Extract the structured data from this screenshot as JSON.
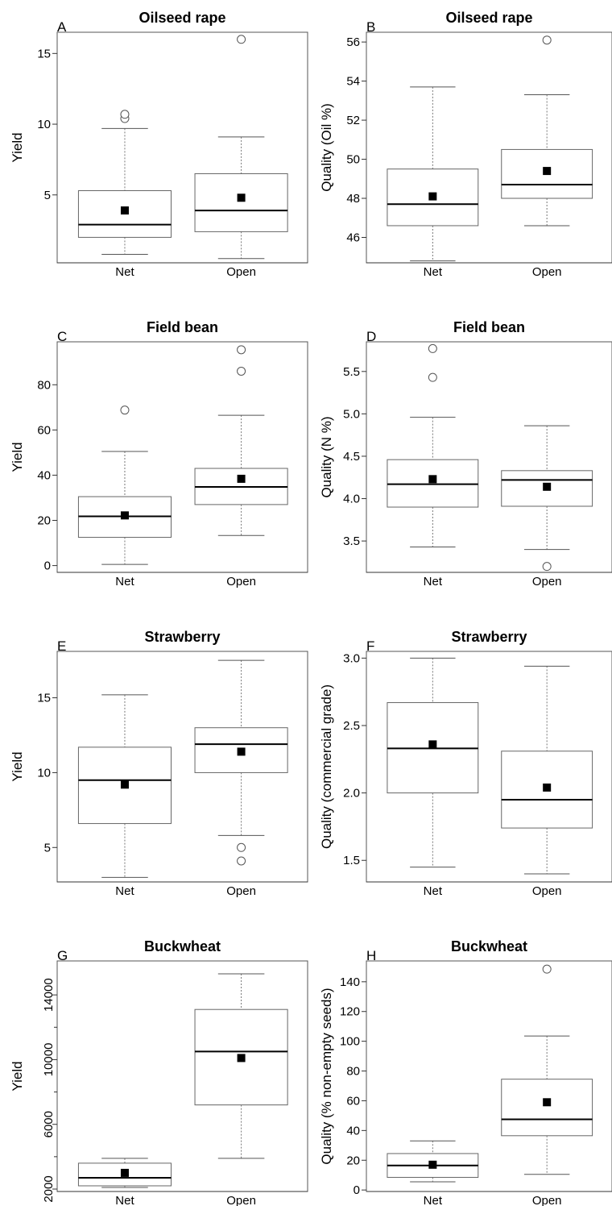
{
  "chart_data": [
    {
      "type": "box",
      "letter": "A",
      "title": "Oilseed rape",
      "ylabel": "Yield",
      "categories": [
        "Net",
        "Open"
      ],
      "ylim": [
        0.2,
        16.5
      ],
      "yticks": [
        5,
        10,
        15
      ],
      "boxes": [
        {
          "lower_whisker": 0.8,
          "q1": 2.0,
          "median": 2.9,
          "q3": 5.3,
          "upper_whisker": 9.7,
          "mean": 3.9,
          "outliers": [
            10.4,
            10.7
          ]
        },
        {
          "lower_whisker": 0.5,
          "q1": 2.4,
          "median": 3.9,
          "q3": 6.5,
          "upper_whisker": 9.1,
          "mean": 4.8,
          "outliers": [
            16.0
          ]
        }
      ]
    },
    {
      "type": "box",
      "letter": "B",
      "title": "Oilseed rape",
      "ylabel": "Quality (Oil %)",
      "categories": [
        "Net",
        "Open"
      ],
      "ylim": [
        44.7,
        56.5
      ],
      "yticks": [
        46,
        48,
        50,
        52,
        54,
        56
      ],
      "boxes": [
        {
          "lower_whisker": 44.8,
          "q1": 46.6,
          "median": 47.7,
          "q3": 49.5,
          "upper_whisker": 53.7,
          "mean": 48.1,
          "outliers": []
        },
        {
          "lower_whisker": 46.6,
          "q1": 48.0,
          "median": 48.7,
          "q3": 50.5,
          "upper_whisker": 53.3,
          "mean": 49.4,
          "outliers": [
            56.1
          ]
        }
      ]
    },
    {
      "type": "box",
      "letter": "C",
      "title": "Field bean",
      "ylabel": "Yield",
      "categories": [
        "Net",
        "Open"
      ],
      "ylim": [
        -3,
        99
      ],
      "yticks": [
        0,
        20,
        40,
        60,
        80
      ],
      "boxes": [
        {
          "lower_whisker": 0.5,
          "q1": 12.5,
          "median": 21.8,
          "q3": 30.5,
          "upper_whisker": 50.5,
          "mean": 22.2,
          "outliers": [
            68.8
          ]
        },
        {
          "lower_whisker": 13.3,
          "q1": 27.0,
          "median": 34.8,
          "q3": 43.0,
          "upper_whisker": 66.5,
          "mean": 38.4,
          "outliers": [
            86.0,
            95.5
          ]
        }
      ]
    },
    {
      "type": "box",
      "letter": "D",
      "title": "Field bean",
      "ylabel": "Quality (N %)",
      "categories": [
        "Net",
        "Open"
      ],
      "ylim": [
        3.13,
        5.85
      ],
      "yticks": [
        3.5,
        4.0,
        4.5,
        5.0,
        5.5
      ],
      "boxes": [
        {
          "lower_whisker": 3.43,
          "q1": 3.9,
          "median": 4.17,
          "q3": 4.46,
          "upper_whisker": 4.96,
          "mean": 4.23,
          "outliers": [
            5.43,
            5.77
          ]
        },
        {
          "lower_whisker": 3.4,
          "q1": 3.91,
          "median": 4.22,
          "q3": 4.33,
          "upper_whisker": 4.86,
          "mean": 4.14,
          "outliers": [
            3.2
          ]
        }
      ]
    },
    {
      "type": "box",
      "letter": "E",
      "title": "Strawberry",
      "ylabel": "Yield",
      "categories": [
        "Net",
        "Open"
      ],
      "ylim": [
        2.7,
        18.1
      ],
      "yticks": [
        5,
        10,
        15
      ],
      "boxes": [
        {
          "lower_whisker": 3.0,
          "q1": 6.6,
          "median": 9.5,
          "q3": 11.7,
          "upper_whisker": 15.2,
          "mean": 9.2,
          "outliers": []
        },
        {
          "lower_whisker": 5.8,
          "q1": 10.0,
          "median": 11.9,
          "q3": 13.0,
          "upper_whisker": 17.5,
          "mean": 11.4,
          "outliers": [
            5.0,
            4.1
          ]
        }
      ]
    },
    {
      "type": "box",
      "letter": "F",
      "title": "Strawberry",
      "ylabel": "Quality (commercial grade)",
      "categories": [
        "Net",
        "Open"
      ],
      "ylim": [
        1.34,
        3.05
      ],
      "yticks": [
        1.5,
        2.0,
        2.5,
        3.0
      ],
      "boxes": [
        {
          "lower_whisker": 1.45,
          "q1": 2.0,
          "median": 2.33,
          "q3": 2.67,
          "upper_whisker": 3.0,
          "mean": 2.36,
          "outliers": []
        },
        {
          "lower_whisker": 1.4,
          "q1": 1.74,
          "median": 1.95,
          "q3": 2.31,
          "upper_whisker": 2.94,
          "mean": 2.04,
          "outliers": []
        }
      ]
    },
    {
      "type": "box",
      "letter": "G",
      "title": "Buckwheat",
      "ylabel": "Yield",
      "categories": [
        "Net",
        "Open"
      ],
      "ylim": [
        1850,
        16100
      ],
      "yticks": [
        2000,
        6000,
        10000,
        14000
      ],
      "minor_yticks": [
        4000,
        8000,
        12000
      ],
      "boxes": [
        {
          "lower_whisker": 2100,
          "q1": 2200,
          "median": 2700,
          "q3": 3600,
          "upper_whisker": 3900,
          "mean": 3000,
          "outliers": []
        },
        {
          "lower_whisker": 3900,
          "q1": 7200,
          "median": 10500,
          "q3": 13100,
          "upper_whisker": 15300,
          "mean": 10100,
          "outliers": []
        }
      ]
    },
    {
      "type": "box",
      "letter": "H",
      "title": "Buckwheat",
      "ylabel": "Quality (% non-empty seeds)",
      "categories": [
        "Net",
        "Open"
      ],
      "ylim": [
        -1,
        154
      ],
      "yticks": [
        0,
        20,
        40,
        60,
        80,
        100,
        120,
        140
      ],
      "boxes": [
        {
          "lower_whisker": 5.5,
          "q1": 8.5,
          "median": 16.5,
          "q3": 24.5,
          "upper_whisker": 33.0,
          "mean": 17.0,
          "outliers": []
        },
        {
          "lower_whisker": 10.5,
          "q1": 36.5,
          "median": 47.5,
          "q3": 74.5,
          "upper_whisker": 103.5,
          "mean": 59.0,
          "outliers": [
            148.5
          ]
        }
      ]
    }
  ]
}
